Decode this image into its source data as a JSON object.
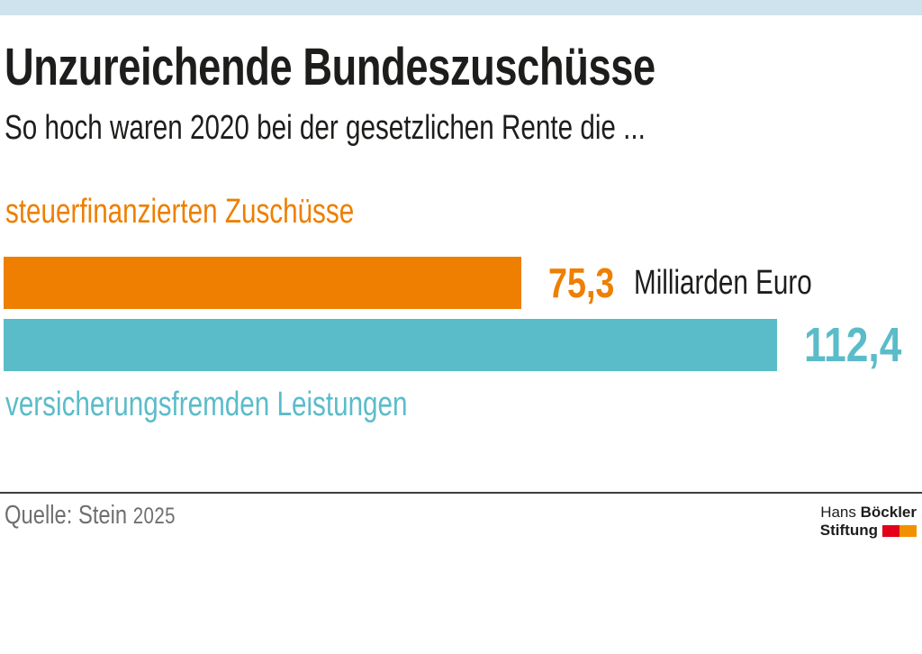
{
  "theme": {
    "topbar_color": "#cee3ee",
    "background_color": "#ffffff",
    "text_color": "#1d1d1b",
    "divider_color": "#3d3d3b",
    "source_color": "#706f6f"
  },
  "chart_data": {
    "type": "bar",
    "orientation": "horizontal",
    "title": "Unzureichende Bundeszuschüsse",
    "subtitle": "So hoch waren 2020 bei der gesetzlichen Rente die ...",
    "unit": "Milliarden Euro",
    "categories": [
      "steuerfinanzierten Zuschüsse",
      "versicherungsfremden Leistungen"
    ],
    "values": [
      75.3,
      112.4
    ],
    "value_labels": [
      "75,3",
      "112,4"
    ],
    "colors": [
      "#ee7f00",
      "#5bbcc9"
    ],
    "xlim": [
      0,
      112.4
    ],
    "grid": false,
    "legend": "none"
  },
  "footer": {
    "source_label": "Quelle: Stein",
    "source_year": "2025",
    "logo": {
      "line1_regular": "Hans",
      "line1_bold": "Böckler",
      "line2_bold": "Stiftung",
      "mark_colors": [
        "#e2001a",
        "#f29100"
      ]
    }
  }
}
